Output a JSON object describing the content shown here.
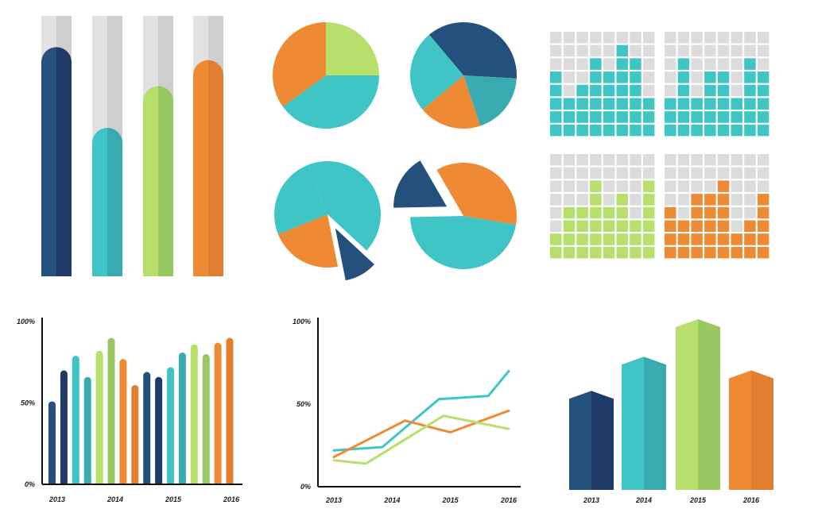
{
  "colors": {
    "navy": "#24507d",
    "navy_dark": "#1f3a66",
    "teal": "#3fc5c5",
    "teal_dark": "#38abb0",
    "green": "#b6df6b",
    "green_dark": "#98c862",
    "orange": "#ee8a34",
    "orange_dark": "#e27e30",
    "track_light": "#e2e2e2",
    "track_dark": "#cfcfcf",
    "empty_cell": "#dcdcdc",
    "axis": "#111111"
  },
  "chart_data": [
    {
      "id": "capsule-bars",
      "type": "bar",
      "orientation": "vertical",
      "style": "rounded capsule bars on grey background tracks",
      "values_percent": [
        88,
        57,
        73,
        83
      ],
      "colors": [
        "navy",
        "teal",
        "green",
        "orange"
      ]
    },
    {
      "id": "pie-1",
      "type": "pie",
      "slices": [
        {
          "value": 25,
          "color": "green"
        },
        {
          "value": 40,
          "color": "teal"
        },
        {
          "value": 35,
          "color": "orange"
        }
      ]
    },
    {
      "id": "pie-2",
      "type": "pie",
      "slices": [
        {
          "value": 37,
          "color": "navy"
        },
        {
          "value": 19,
          "color": "teal_dark"
        },
        {
          "value": 19,
          "color": "orange"
        },
        {
          "value": 25,
          "color": "teal"
        }
      ]
    },
    {
      "id": "pie-3",
      "type": "pie",
      "exploded": "navy",
      "slices": [
        {
          "value": 43,
          "color": "teal"
        },
        {
          "value": 10,
          "color": "navy"
        },
        {
          "value": 22,
          "color": "orange"
        },
        {
          "value": 25,
          "color": "teal"
        }
      ]
    },
    {
      "id": "pie-4",
      "type": "pie",
      "exploded": "navy",
      "slices": [
        {
          "value": 36,
          "color": "orange"
        },
        {
          "value": 47,
          "color": "teal"
        },
        {
          "value": 17,
          "color": "navy"
        }
      ]
    },
    {
      "id": "waffle-teal",
      "type": "heatmap",
      "style": "column waffle, 8 columns x 8 rows, filled cells from bottom",
      "color": "teal",
      "columns": [
        5,
        3,
        4,
        6,
        5,
        7,
        6,
        3
      ]
    },
    {
      "id": "waffle-teal-2",
      "type": "heatmap",
      "style": "column waffle, 8 columns x 8 rows, filled cells from bottom",
      "color": "teal",
      "columns": [
        3,
        6,
        3,
        5,
        5,
        3,
        6,
        5
      ]
    },
    {
      "id": "waffle-green",
      "type": "heatmap",
      "style": "column waffle, 8 columns x 8 rows, filled cells from bottom",
      "color": "green",
      "columns": [
        2,
        4,
        4,
        6,
        4,
        5,
        3,
        6
      ]
    },
    {
      "id": "waffle-orange",
      "type": "heatmap",
      "style": "column waffle, 8 columns x 8 rows, filled cells from bottom",
      "color": "orange",
      "columns": [
        4,
        3,
        5,
        5,
        6,
        2,
        3,
        5
      ]
    },
    {
      "id": "grouped-bars",
      "type": "bar",
      "ylim": [
        0,
        100
      ],
      "ytick_labels": [
        "100%",
        "50%",
        "0%"
      ],
      "yticks": [
        100,
        50,
        0
      ],
      "categories": [
        "2013",
        "2014",
        "2015",
        "2016"
      ],
      "bars": [
        {
          "category": "2013",
          "value": 51,
          "color": "navy"
        },
        {
          "category": "2013",
          "value": 70,
          "color": "navy_dark"
        },
        {
          "category": "2013",
          "value": 79,
          "color": "teal"
        },
        {
          "category": "2013",
          "value": 66,
          "color": "teal_dark"
        },
        {
          "category": "2014",
          "value": 82,
          "color": "green"
        },
        {
          "category": "2014",
          "value": 90,
          "color": "green_dark"
        },
        {
          "category": "2014",
          "value": 77,
          "color": "orange"
        },
        {
          "category": "2014",
          "value": 61,
          "color": "orange_dark"
        },
        {
          "category": "2015",
          "value": 69,
          "color": "navy"
        },
        {
          "category": "2015",
          "value": 66,
          "color": "navy_dark"
        },
        {
          "category": "2015",
          "value": 72,
          "color": "teal"
        },
        {
          "category": "2015",
          "value": 81,
          "color": "teal_dark"
        },
        {
          "category": "2015",
          "value": 86,
          "color": "green"
        },
        {
          "category": "2016",
          "value": 80,
          "color": "green_dark"
        },
        {
          "category": "2016",
          "value": 87,
          "color": "orange"
        },
        {
          "category": "2016",
          "value": 90,
          "color": "orange_dark"
        }
      ]
    },
    {
      "id": "line-chart",
      "type": "line",
      "ylim": [
        0,
        100
      ],
      "ytick_labels": [
        "100%",
        "50%",
        "0%"
      ],
      "yticks": [
        100,
        50,
        0
      ],
      "x_tick_labels": [
        "2013",
        "2014",
        "2015",
        "2016"
      ],
      "x_range": [
        2013,
        2016
      ],
      "series": [
        {
          "color": "teal",
          "points": [
            [
              2013,
              22
            ],
            [
              2013.83,
              24
            ],
            [
              2014.8,
              53
            ],
            [
              2015.65,
              55
            ],
            [
              2016,
              70
            ]
          ]
        },
        {
          "color": "orange",
          "points": [
            [
              2013,
              18
            ],
            [
              2014.22,
              40
            ],
            [
              2015.0,
              33
            ],
            [
              2016,
              46
            ]
          ]
        },
        {
          "color": "green",
          "points": [
            [
              2013,
              16
            ],
            [
              2013.55,
              14
            ],
            [
              2014.88,
              43
            ],
            [
              2016,
              35
            ]
          ]
        }
      ]
    },
    {
      "id": "3d-bars",
      "type": "bar",
      "style": "3D prism bars with peaked tops",
      "categories": [
        "2013",
        "2014",
        "2015",
        "2016"
      ],
      "values_percent": [
        58,
        78,
        100,
        70
      ],
      "colors": [
        "navy",
        "teal",
        "green",
        "orange"
      ]
    }
  ]
}
